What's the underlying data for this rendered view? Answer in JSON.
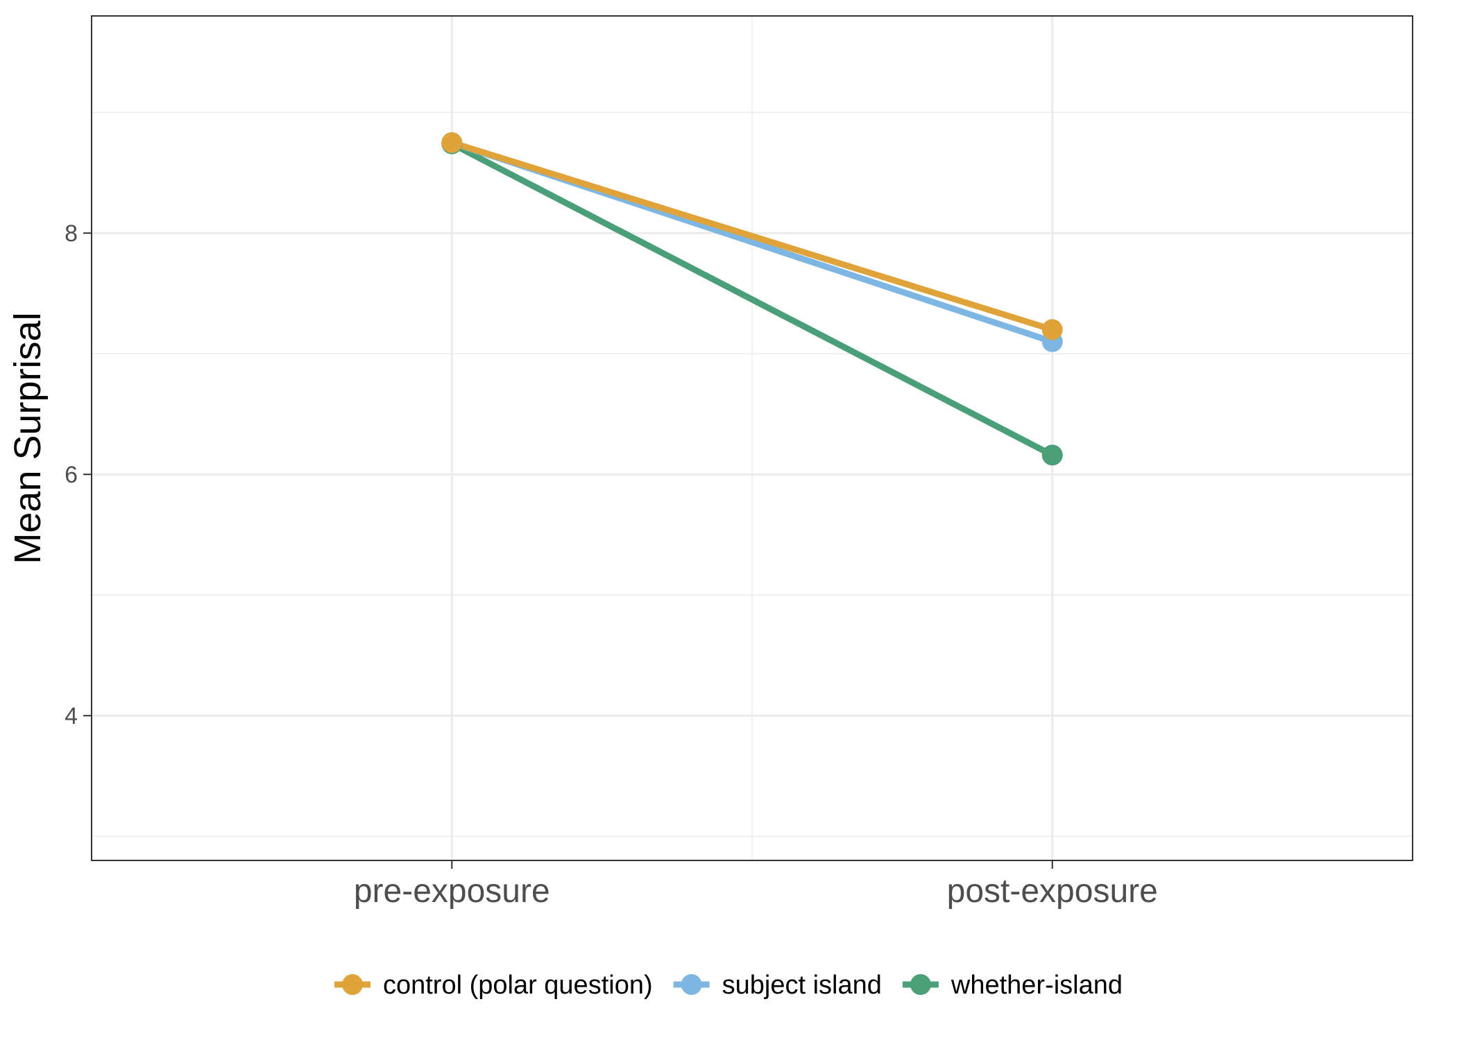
{
  "chart_data": {
    "type": "line",
    "categories": [
      "pre-exposure",
      "post-exposure"
    ],
    "ylabel": "Mean Surprisal",
    "xlabel": "",
    "ylim": [
      2.8,
      9.8
    ],
    "y_ticks": [
      4,
      6,
      8
    ],
    "y_minor_ticks": [
      3,
      5,
      7,
      9
    ],
    "grid": true,
    "legend_position": "bottom",
    "series": [
      {
        "name": "control (polar question)",
        "color": "#E0A33A",
        "values": [
          8.75,
          7.2
        ]
      },
      {
        "name": "subject island",
        "color": "#7DB6E3",
        "values": [
          8.75,
          7.1
        ]
      },
      {
        "name": "whether-island",
        "color": "#4A9E78",
        "values": [
          8.74,
          6.16
        ]
      }
    ]
  }
}
